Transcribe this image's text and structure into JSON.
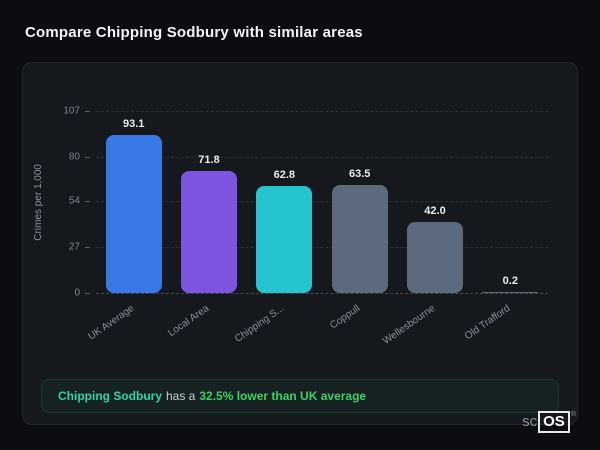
{
  "page": {
    "title": "Compare Chipping Sodbury with similar areas"
  },
  "chart_data": {
    "type": "bar",
    "categories": [
      "UK Average",
      "Local Area",
      "Chipping S...",
      "Coppull",
      "Wellesbourne",
      "Old Trafford"
    ],
    "values": [
      93.1,
      71.8,
      62.8,
      63.5,
      42.0,
      0.2
    ],
    "value_labels": [
      "93.1",
      "71.8",
      "62.8",
      "63.5",
      "42.0",
      "0.2"
    ],
    "bar_colors": [
      "#3a78e7",
      "#7d55e0",
      "#26c4cf",
      "#5c6a7d",
      "#5c6a7d",
      "#5c6a7d"
    ],
    "title": "",
    "xlabel": "",
    "ylabel": "Crimes per 1,000",
    "ylim": [
      0,
      107
    ],
    "yticks": [
      0,
      27,
      54,
      80,
      107
    ],
    "grid": true,
    "legend": false
  },
  "note": {
    "area_name": "Chipping Sodbury",
    "middle_text": "has a",
    "highlight_text": "32.5% lower than UK average"
  },
  "logo": {
    "prefix": "sc",
    "suffix": "OS",
    "registered": "®"
  }
}
